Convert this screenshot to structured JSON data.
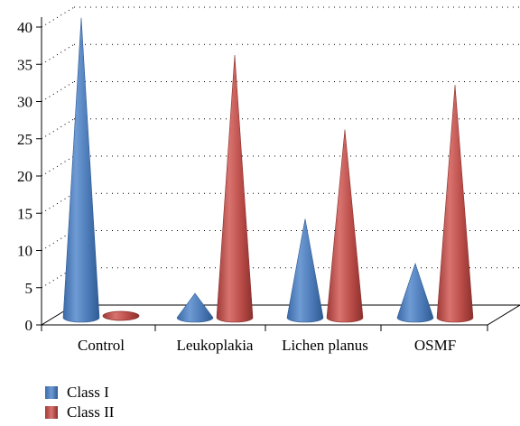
{
  "chart_data": {
    "type": "bar",
    "style": "3d-cone",
    "categories": [
      "Control",
      "Leukoplakia",
      "Lichen planus",
      "OSMF"
    ],
    "series": [
      {
        "name": "Class I",
        "values": [
          41,
          4,
          14,
          8
        ],
        "color": "#4f81bd"
      },
      {
        "name": "Class II",
        "values": [
          0,
          36,
          26,
          32
        ],
        "color": "#c0504d"
      }
    ],
    "y_ticks": [
      "0",
      "5",
      "10",
      "15",
      "20",
      "25",
      "30",
      "35",
      "40"
    ],
    "ylim": [
      0,
      40
    ],
    "grid": "dotted horizontal",
    "legend_position": "bottom-left",
    "title": "",
    "xlabel": "",
    "ylabel": ""
  }
}
